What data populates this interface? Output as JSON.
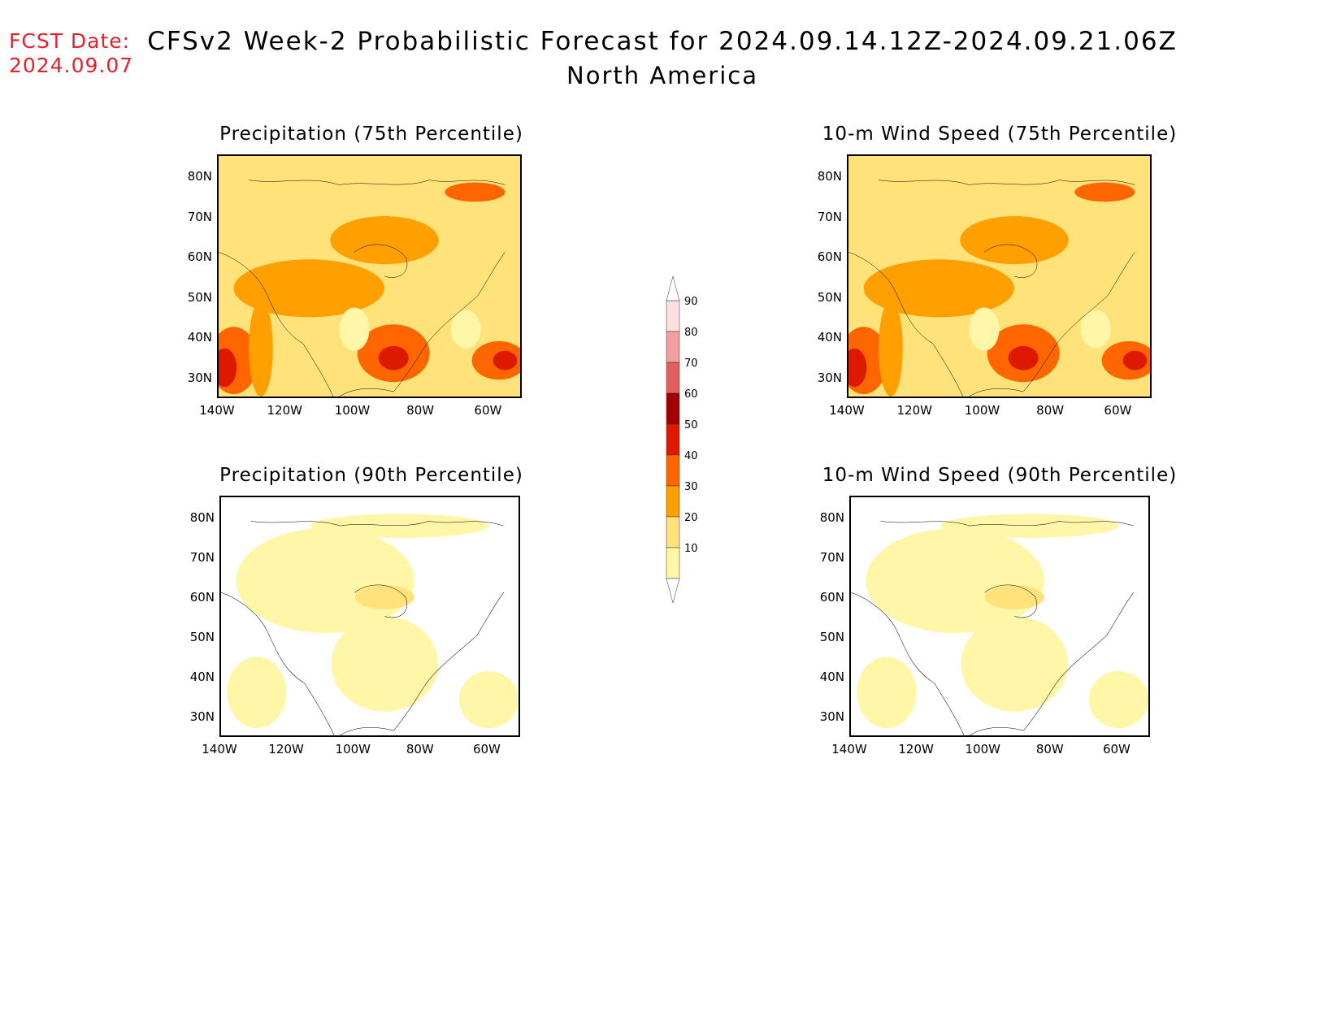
{
  "header": {
    "fcst_label": "FCST Date:",
    "fcst_date": "2024.09.07",
    "title": "CFSv2 Week-2 Probabilistic Forecast for 2024.09.14.12Z-2024.09.21.06Z",
    "subtitle": "North America"
  },
  "panels": [
    {
      "id": "p1",
      "title": "Precipitation (75th Percentile)",
      "intensity": "high"
    },
    {
      "id": "p2",
      "title": "10-m Wind Speed (75th Percentile)",
      "intensity": "high"
    },
    {
      "id": "p3",
      "title": "Precipitation (90th Percentile)",
      "intensity": "low"
    },
    {
      "id": "p4",
      "title": "10-m Wind Speed (90th Percentile)",
      "intensity": "low"
    }
  ],
  "axes": {
    "lat_labels": [
      "80N",
      "70N",
      "60N",
      "50N",
      "40N",
      "30N"
    ],
    "lon_labels": [
      "140W",
      "120W",
      "100W",
      "80W",
      "60W"
    ]
  },
  "colorbar": {
    "labels": [
      "90",
      "80",
      "70",
      "60",
      "50",
      "40",
      "30",
      "20",
      "10"
    ],
    "colors": [
      "#fde0e0",
      "#f2a0a0",
      "#e06060",
      "#a00000",
      "#dd1a00",
      "#ff6600",
      "#ff9f00",
      "#ffe27a",
      "#fff6a8"
    ]
  },
  "colors": {
    "fcst": "#e8202a",
    "level10": "#fff6a8",
    "level20": "#ffe27a",
    "level30": "#ff9f00",
    "level40": "#ff6600",
    "level50": "#dd1a00",
    "level60": "#a00000"
  }
}
